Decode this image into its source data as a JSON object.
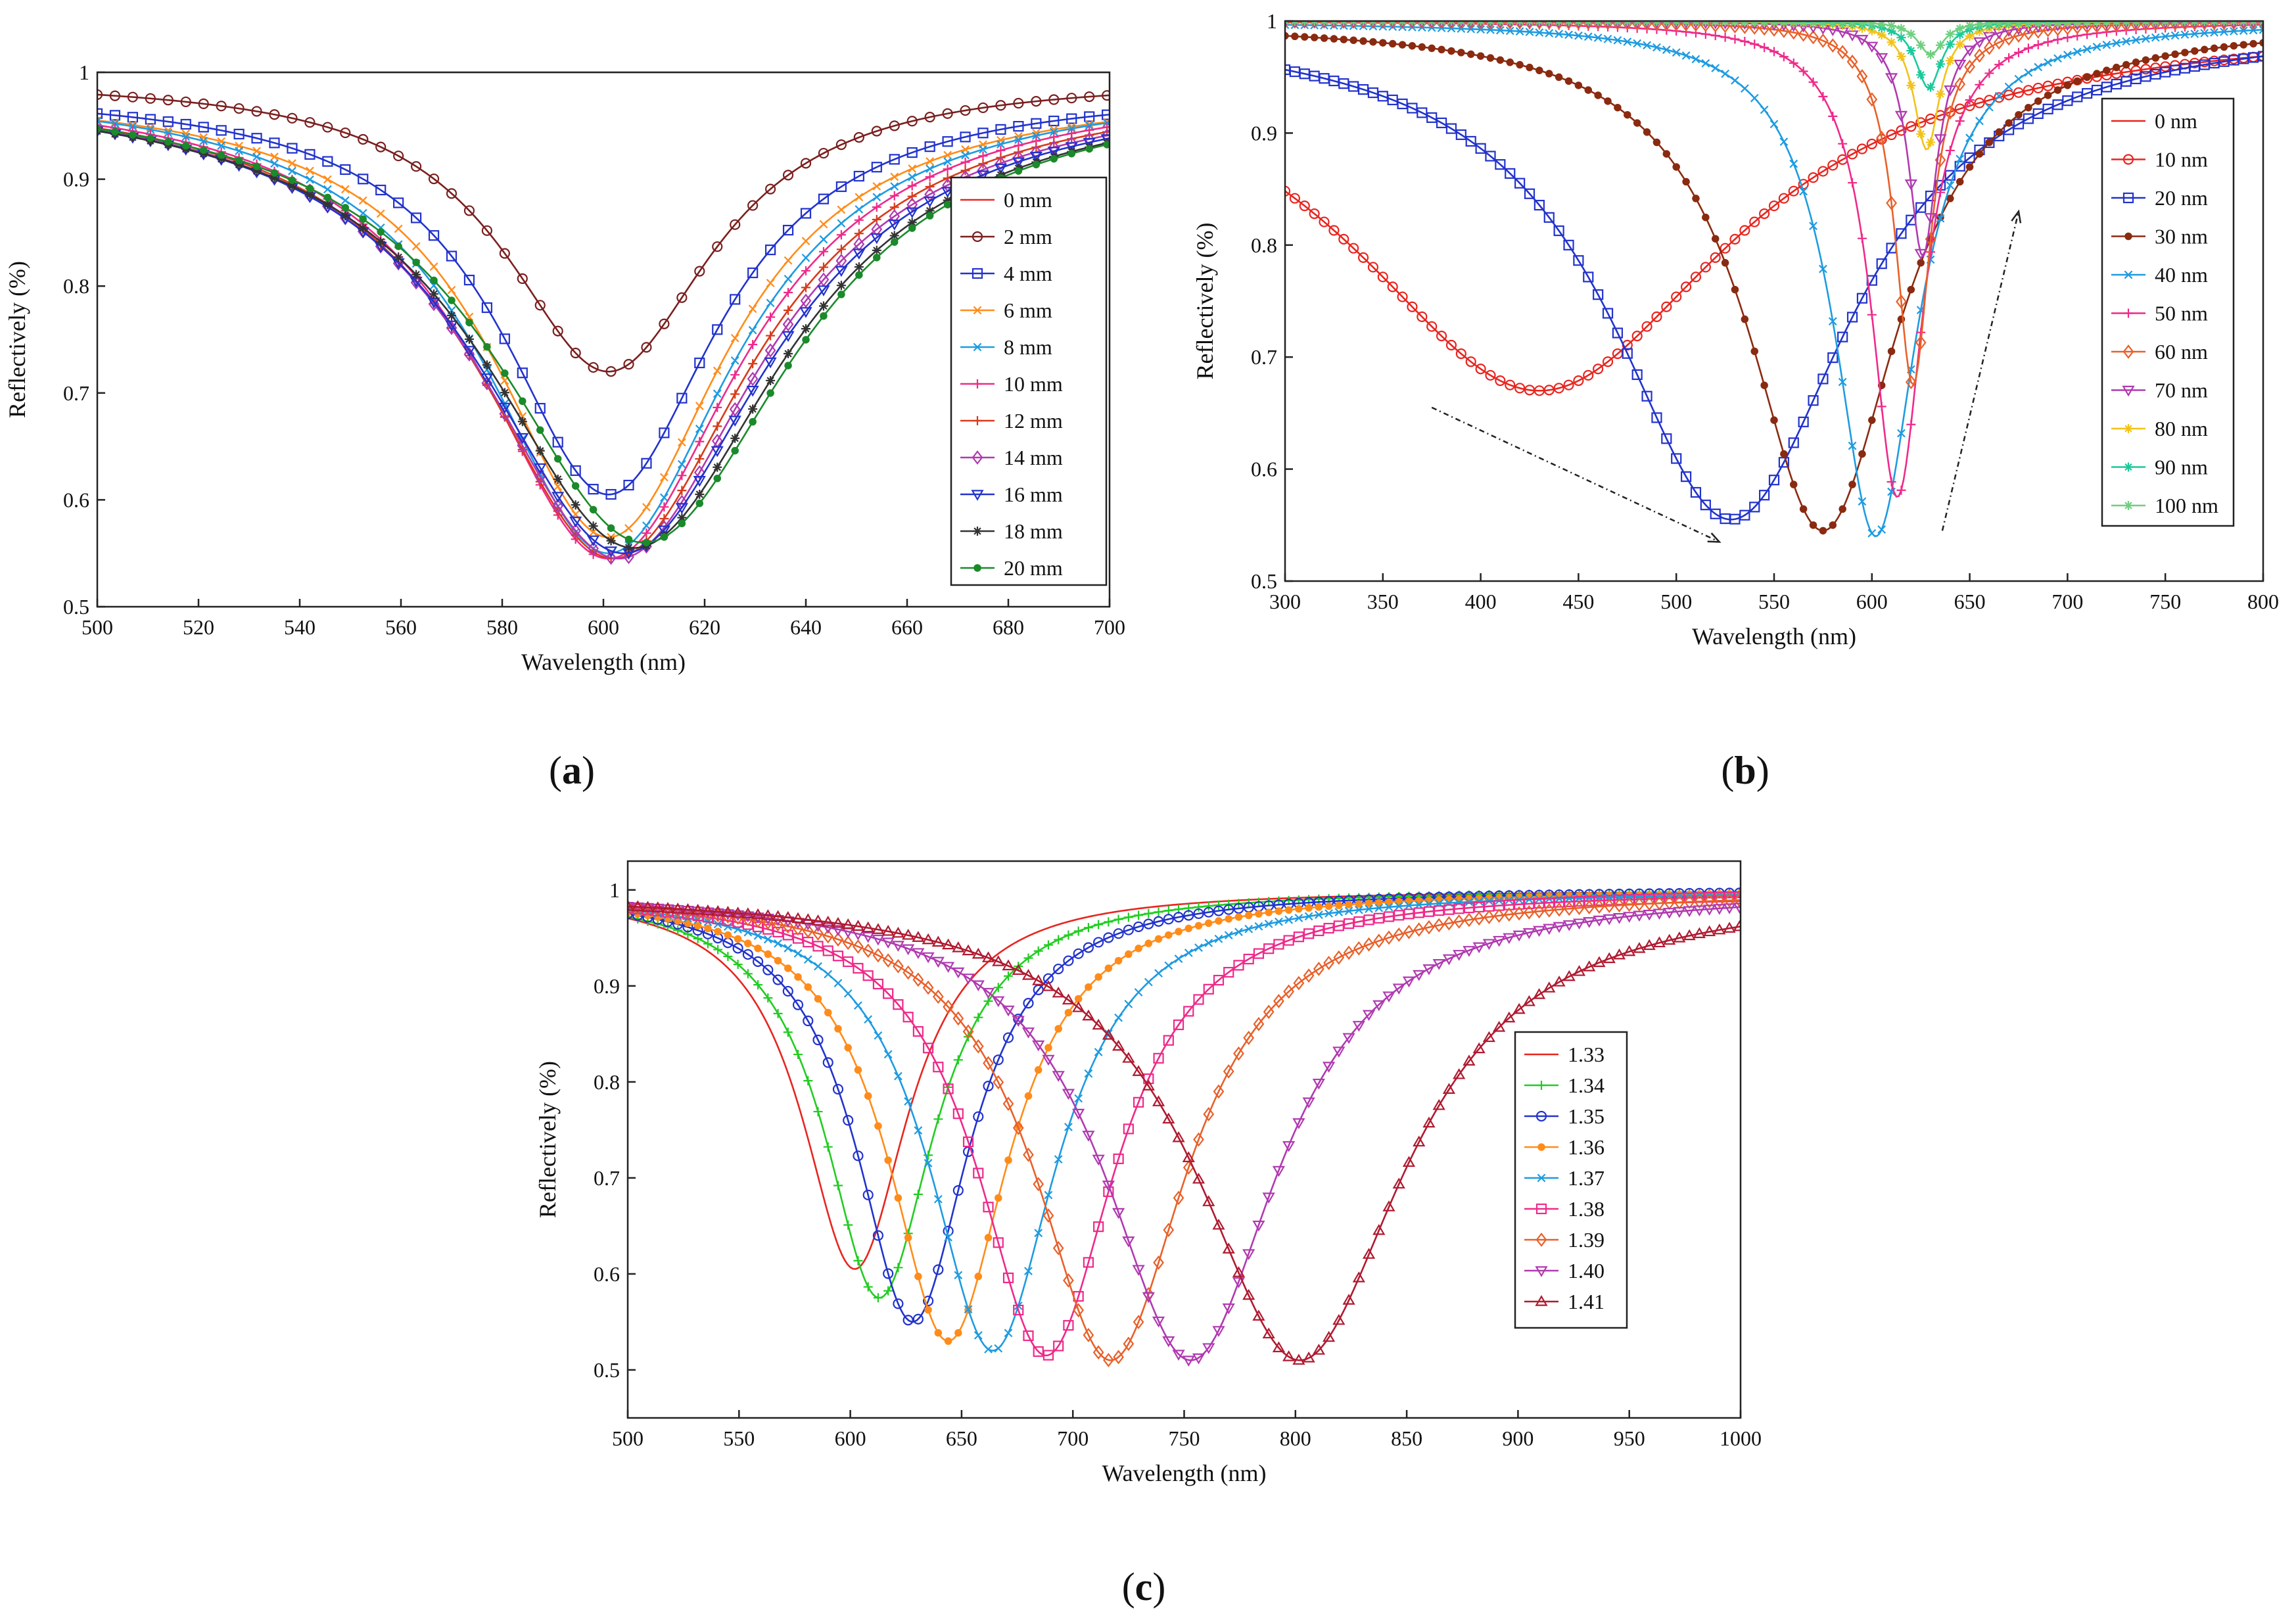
{
  "figure": {
    "labels": [
      "a",
      "b",
      "c"
    ]
  },
  "chart_data": [
    {
      "id": "a",
      "type": "line",
      "panel_label": "a",
      "xlabel": "Wavelength (nm)",
      "ylabel": "Reflectively (%)",
      "xlim": [
        500,
        700
      ],
      "ylim": [
        0.5,
        1.0
      ],
      "xticks": [
        500,
        520,
        540,
        560,
        580,
        600,
        620,
        640,
        660,
        680,
        700
      ],
      "yticks": [
        0.5,
        0.6,
        0.7,
        0.8,
        0.9,
        1.0
      ],
      "ytick_labels": [
        "0.5",
        "0.6",
        "0.7",
        "0.8",
        "0.9",
        "1"
      ],
      "legend_position": "right",
      "marker_step": 3.5,
      "series": [
        {
          "name": "0 mm",
          "color": "#e8251f",
          "marker": "none",
          "kind": "flat",
          "y0": 1.0
        },
        {
          "name": "2 mm",
          "color": "#7a1f1f",
          "marker": "circle",
          "kind": "lor",
          "center": 601,
          "min": 0.72,
          "fwhm": 50,
          "base": 0.995,
          "slope": 0.0
        },
        {
          "name": "4 mm",
          "color": "#2233cc",
          "marker": "square",
          "kind": "lor",
          "center": 601,
          "min": 0.605,
          "fwhm": 52,
          "base": 0.985,
          "slope": 0.0
        },
        {
          "name": "6 mm",
          "color": "#ff8c1a",
          "marker": "x",
          "kind": "lor",
          "center": 601,
          "min": 0.565,
          "fwhm": 56,
          "base": 0.985,
          "slope": 0.0
        },
        {
          "name": "8 mm",
          "color": "#1e9be0",
          "marker": "x",
          "kind": "lor",
          "center": 601,
          "min": 0.55,
          "fwhm": 60,
          "base": 0.99,
          "slope": 0.0
        },
        {
          "name": "10 mm",
          "color": "#ee2a8a",
          "marker": "plus",
          "kind": "lor",
          "center": 601,
          "min": 0.545,
          "fwhm": 63,
          "base": 0.99,
          "slope": 0.0
        },
        {
          "name": "12 mm",
          "color": "#d83a1a",
          "marker": "plus",
          "kind": "lor",
          "center": 602,
          "min": 0.545,
          "fwhm": 66,
          "base": 0.99,
          "slope": 0.0
        },
        {
          "name": "14 mm",
          "color": "#b03ab0",
          "marker": "diamond",
          "kind": "lor",
          "center": 603,
          "min": 0.545,
          "fwhm": 68,
          "base": 0.99,
          "slope": 0.0
        },
        {
          "name": "16 mm",
          "color": "#2233cc",
          "marker": "tri-down",
          "kind": "lor",
          "center": 604,
          "min": 0.55,
          "fwhm": 70,
          "base": 0.99,
          "slope": 0.0
        },
        {
          "name": "18 mm",
          "color": "#333333",
          "marker": "star",
          "kind": "lor",
          "center": 606,
          "min": 0.555,
          "fwhm": 72,
          "base": 0.99,
          "slope": 0.0
        },
        {
          "name": "20 mm",
          "color": "#1a8a2a",
          "marker": "dot",
          "kind": "lor",
          "center": 608,
          "min": 0.56,
          "fwhm": 72,
          "base": 0.99,
          "slope": 0.0
        }
      ]
    },
    {
      "id": "b",
      "type": "line",
      "panel_label": "b",
      "xlabel": "Wavelength (nm)",
      "ylabel": "Reflectively (%)",
      "xlim": [
        300,
        800
      ],
      "ylim": [
        0.5,
        1.0
      ],
      "xticks": [
        300,
        350,
        400,
        450,
        500,
        550,
        600,
        650,
        700,
        750,
        800
      ],
      "yticks": [
        0.5,
        0.6,
        0.7,
        0.8,
        0.9,
        1.0
      ],
      "ytick_labels": [
        "0.5",
        "0.6",
        "0.7",
        "0.8",
        "0.9",
        "1"
      ],
      "legend_position": "right",
      "marker_step": 5,
      "arrows": [
        {
          "x1": 375,
          "y1": 0.655,
          "x2": 522,
          "y2": 0.535
        },
        {
          "x1": 636,
          "y1": 0.545,
          "x2": 675,
          "y2": 0.83
        }
      ],
      "series": [
        {
          "name": "0 nm",
          "color": "#e8251f",
          "marker": "none",
          "kind": "flat",
          "y0": 1.0
        },
        {
          "name": "10 nm",
          "color": "#e8251f",
          "marker": "circle",
          "kind": "lor",
          "center": 430,
          "min": 0.67,
          "fwhm": 240,
          "base": 1.0
        },
        {
          "name": "20 nm",
          "color": "#2233cc",
          "marker": "square",
          "kind": "lor",
          "center": 528,
          "min": 0.555,
          "fwhm": 150,
          "base": 1.0
        },
        {
          "name": "30 nm",
          "color": "#8a2a10",
          "marker": "dot",
          "kind": "lor",
          "center": 575,
          "min": 0.545,
          "fwhm": 95,
          "base": 1.0
        },
        {
          "name": "40 nm",
          "color": "#1e9be0",
          "marker": "x",
          "kind": "lor",
          "center": 602,
          "min": 0.54,
          "fwhm": 52,
          "base": 1.0
        },
        {
          "name": "50 nm",
          "color": "#ee2a8a",
          "marker": "plus",
          "kind": "lor",
          "center": 613,
          "min": 0.575,
          "fwhm": 33,
          "base": 1.0
        },
        {
          "name": "60 nm",
          "color": "#e8602a",
          "marker": "diamond",
          "kind": "lor",
          "center": 621,
          "min": 0.675,
          "fwhm": 22,
          "base": 1.0
        },
        {
          "name": "70 nm",
          "color": "#b03ab0",
          "marker": "tri-down",
          "kind": "lor",
          "center": 626,
          "min": 0.79,
          "fwhm": 18,
          "base": 1.0
        },
        {
          "name": "80 nm",
          "color": "#f2c21a",
          "marker": "star",
          "kind": "lor",
          "center": 628,
          "min": 0.885,
          "fwhm": 16,
          "base": 1.0
        },
        {
          "name": "90 nm",
          "color": "#1ac99a",
          "marker": "star",
          "kind": "lor",
          "center": 629,
          "min": 0.94,
          "fwhm": 16,
          "base": 1.0
        },
        {
          "name": "100 nm",
          "color": "#6fcf7f",
          "marker": "star",
          "kind": "lor",
          "center": 630,
          "min": 0.97,
          "fwhm": 16,
          "base": 1.0
        }
      ]
    },
    {
      "id": "c",
      "type": "line",
      "panel_label": "c",
      "xlabel": "Wavelength (nm)",
      "ylabel": "Reflectively (%)",
      "xlim": [
        500,
        1000
      ],
      "ylim": [
        0.45,
        1.03
      ],
      "xticks": [
        500,
        550,
        600,
        650,
        700,
        750,
        800,
        850,
        900,
        950,
        1000
      ],
      "yticks": [
        0.5,
        0.6,
        0.7,
        0.8,
        0.9,
        1.0
      ],
      "ytick_labels": [
        "0.5",
        "0.6",
        "0.7",
        "0.8",
        "0.9",
        "1"
      ],
      "legend_position": "right",
      "marker_step": 4.5,
      "series": [
        {
          "name": "1.33",
          "color": "#e8251f",
          "marker": "none",
          "kind": "lor",
          "center": 602,
          "min": 0.605,
          "fwhm": 58,
          "base": 1.0
        },
        {
          "name": "1.34",
          "color": "#22cc22",
          "marker": "plus",
          "kind": "lor",
          "center": 613,
          "min": 0.575,
          "fwhm": 60,
          "base": 1.0
        },
        {
          "name": "1.35",
          "color": "#2233cc",
          "marker": "circle",
          "kind": "lor",
          "center": 628,
          "min": 0.55,
          "fwhm": 62,
          "base": 1.0
        },
        {
          "name": "1.36",
          "color": "#ff8c1a",
          "marker": "dot",
          "kind": "lor",
          "center": 644,
          "min": 0.53,
          "fwhm": 66,
          "base": 1.0
        },
        {
          "name": "1.37",
          "color": "#1e9be0",
          "marker": "x",
          "kind": "lor",
          "center": 664,
          "min": 0.52,
          "fwhm": 70,
          "base": 1.0
        },
        {
          "name": "1.38",
          "color": "#ee2a8a",
          "marker": "square",
          "kind": "lor",
          "center": 688,
          "min": 0.515,
          "fwhm": 76,
          "base": 1.0
        },
        {
          "name": "1.39",
          "color": "#e8602a",
          "marker": "diamond",
          "kind": "lor",
          "center": 717,
          "min": 0.51,
          "fwhm": 84,
          "base": 1.0
        },
        {
          "name": "1.40",
          "color": "#b03ab0",
          "marker": "tri-down",
          "kind": "lor",
          "center": 753,
          "min": 0.51,
          "fwhm": 96,
          "base": 1.0
        },
        {
          "name": "1.41",
          "color": "#b01a30",
          "marker": "tri-up",
          "kind": "lor",
          "center": 802,
          "min": 0.51,
          "fwhm": 115,
          "base": 1.0
        }
      ]
    }
  ]
}
